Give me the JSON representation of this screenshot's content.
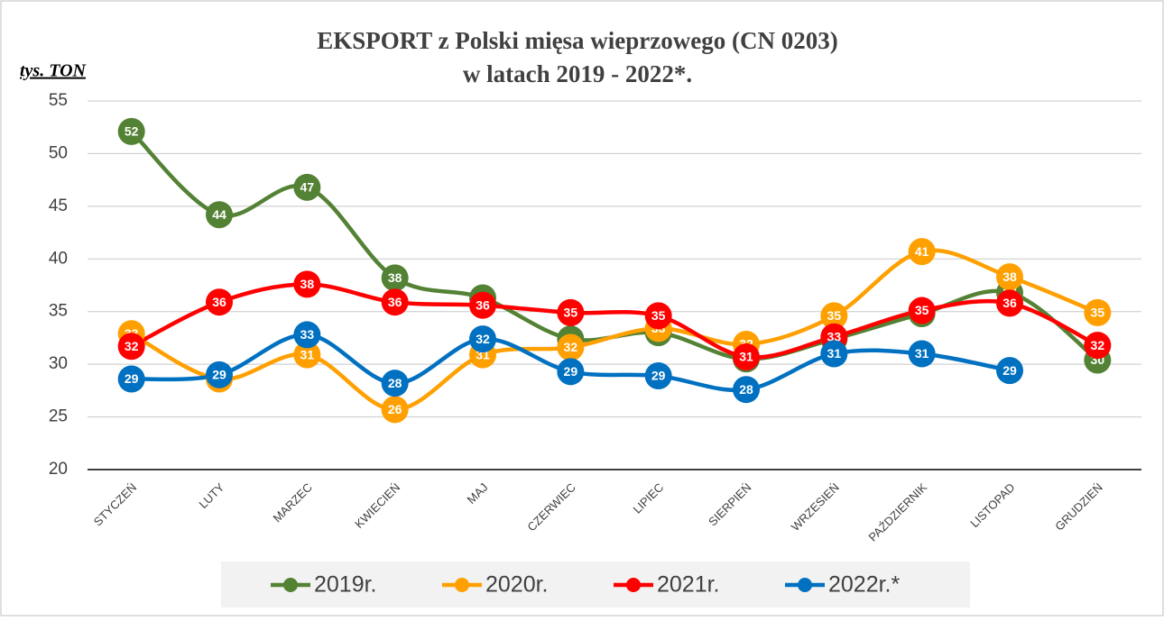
{
  "chart_data": {
    "type": "line",
    "title": "EKSPORT z Polski mięsa wieprzowego  (CN 0203)",
    "subtitle": "w latach 2019 - 2022*.",
    "y_label": "tys. TON",
    "categories": [
      "STYCZEŃ",
      "LUTY",
      "MARZEC",
      "KWIECIEŃ",
      "MAJ",
      "CZERWIEC",
      "LIPIEC",
      "SIERPIEŃ",
      "WRZESIEŃ",
      "PAŹDZIERNIK",
      "LISTOPAD",
      "GRUDZIEŃ"
    ],
    "ylim": [
      20,
      55
    ],
    "yticks": [
      20,
      25,
      30,
      35,
      40,
      45,
      50,
      55
    ],
    "grid": true,
    "legend": "bottom",
    "series": [
      {
        "name": "2019r.",
        "color": "#548235",
        "values": [
          52.1,
          44.2,
          46.8,
          38.2,
          36.3,
          32.4,
          33.0,
          30.5,
          32.4,
          34.8,
          36.8,
          30.4
        ],
        "value_labels": [
          "52",
          "44",
          "47",
          "38",
          "36",
          "32",
          "33",
          "31",
          "32",
          "35",
          "37",
          "30"
        ]
      },
      {
        "name": "2020r.",
        "color": "#ffa000",
        "values": [
          32.9,
          28.6,
          30.9,
          25.7,
          30.9,
          31.6,
          33.4,
          31.9,
          34.6,
          40.7,
          38.3,
          34.9
        ],
        "value_labels": [
          "33",
          "29",
          "31",
          "26",
          "31",
          "32",
          "33",
          "32",
          "35",
          "41",
          "38",
          "35"
        ]
      },
      {
        "name": "2021r.",
        "color": "#ff0000",
        "values": [
          31.7,
          35.9,
          37.6,
          35.9,
          35.6,
          34.9,
          34.6,
          30.7,
          32.6,
          35.1,
          35.8,
          31.8
        ],
        "value_labels": [
          "32",
          "36",
          "38",
          "36",
          "36",
          "35",
          "35",
          "31",
          "33",
          "35",
          "36",
          "32"
        ]
      },
      {
        "name": "2022r.*",
        "color": "#0070c0",
        "values": [
          28.6,
          29.0,
          32.8,
          28.2,
          32.4,
          29.3,
          28.9,
          27.6,
          31.0,
          31.0,
          29.4,
          null
        ],
        "value_labels": [
          "29",
          "29",
          "33",
          "28",
          "32",
          "29",
          "29",
          "28",
          "31",
          "31",
          "29",
          null
        ]
      }
    ]
  }
}
